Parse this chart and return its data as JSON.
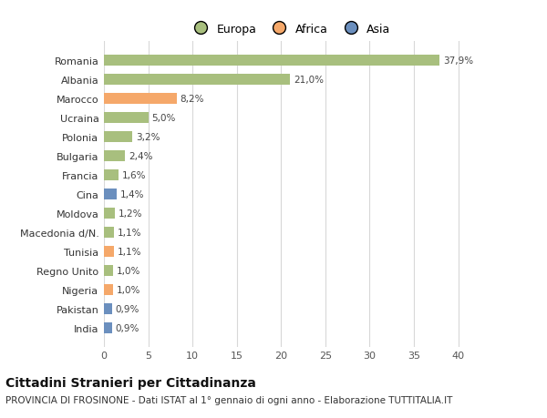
{
  "categories": [
    "India",
    "Pakistan",
    "Nigeria",
    "Regno Unito",
    "Tunisia",
    "Macedonia d/N.",
    "Moldova",
    "Cina",
    "Francia",
    "Bulgaria",
    "Polonia",
    "Ucraina",
    "Marocco",
    "Albania",
    "Romania"
  ],
  "values": [
    0.9,
    0.9,
    1.0,
    1.0,
    1.1,
    1.1,
    1.2,
    1.4,
    1.6,
    2.4,
    3.2,
    5.0,
    8.2,
    21.0,
    37.9
  ],
  "labels": [
    "0,9%",
    "0,9%",
    "1,0%",
    "1,0%",
    "1,1%",
    "1,1%",
    "1,2%",
    "1,4%",
    "1,6%",
    "2,4%",
    "3,2%",
    "5,0%",
    "8,2%",
    "21,0%",
    "37,9%"
  ],
  "colors": [
    "#6b8fbe",
    "#6b8fbe",
    "#f5a86a",
    "#a8bf7e",
    "#f5a86a",
    "#a8bf7e",
    "#a8bf7e",
    "#6b8fbe",
    "#a8bf7e",
    "#a8bf7e",
    "#a8bf7e",
    "#a8bf7e",
    "#f5a86a",
    "#a8bf7e",
    "#a8bf7e"
  ],
  "europa_color": "#a8bf7e",
  "africa_color": "#f5a86a",
  "asia_color": "#6b8fbe",
  "background_color": "#ffffff",
  "grid_color": "#d8d8d8",
  "xlim": [
    0,
    42
  ],
  "xticks": [
    0,
    5,
    10,
    15,
    20,
    25,
    30,
    35,
    40
  ],
  "title": "Cittadini Stranieri per Cittadinanza",
  "subtitle": "PROVINCIA DI FROSINONE - Dati ISTAT al 1° gennaio di ogni anno - Elaborazione TUTTITALIA.IT",
  "title_fontsize": 10,
  "subtitle_fontsize": 7.5,
  "label_fontsize": 7.5,
  "tick_fontsize": 8,
  "legend_fontsize": 9
}
